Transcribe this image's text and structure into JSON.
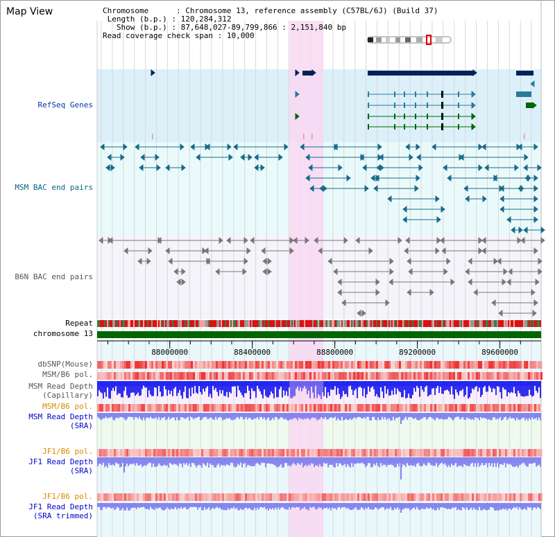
{
  "window": {
    "title": "Map View"
  },
  "info": {
    "chromosome_key": "Chromosome",
    "chromosome_value": "Chromosome 13, reference assembly (C57BL/6J) (Build 37)",
    "length_key": "Length (b.p.)",
    "length_value": "120,284,312",
    "show_key": "Show (b.p.)",
    "show_value": "87,648,027-89,799,866 : 2,151,840 bp",
    "coverage_key": "Read coverage check span",
    "coverage_value": "10,000"
  },
  "tracks": {
    "refseq": "RefSeq Genes",
    "msm_bac": "MSM BAC end pairs",
    "b6n_bac": "B6N BAC end pairs",
    "repeat": "Repeat",
    "chromosome": "chromosome 13",
    "dbsnp": "dbSNP(Mouse)",
    "msm_b6_pol_1": "MSM/B6 pol.",
    "msm_depth_cap_1": "MSM Read Depth",
    "msm_depth_cap_2": "(Capillary)",
    "msm_b6_pol_2": "MSM/B6 pol.",
    "msm_depth_sra_1": "MSM Read Depth",
    "msm_depth_sra_2": "(SRA)",
    "jf1_b6_pol_1": "JF1/B6 pol.",
    "jf1_depth_sra_1": "JF1 Read Depth",
    "jf1_depth_sra_2": "(SRA)",
    "jf1_b6_pol_2": "JF1/B6 pol.",
    "jf1_depth_trim_1": "JF1 Read Depth",
    "jf1_depth_trim_2": "(SRA trimmed)"
  },
  "axis": {
    "ticks": [
      "88000000",
      "88400000",
      "88800000",
      "89200000",
      "89600000"
    ],
    "tick_values": [
      88000000,
      88400000,
      88800000,
      89200000,
      89600000
    ],
    "range": [
      87648027,
      89799866
    ]
  },
  "colors": {
    "refseq_bg": "#dcf0fa",
    "bac_bg": "#eafafa",
    "b6n_bg": "#f4f4fa",
    "highlight": "#f9d8f2",
    "chromosome_bar": "#006600",
    "gene_dark": "#002255",
    "gene_teal": "#2a7a99",
    "gene_green": "#006600",
    "depth_blue": "#1a1aee",
    "depth_lavender": "#8080ee",
    "snp_red": "#ee3333"
  },
  "highlight_region": {
    "start": 88580000,
    "end": 88745000
  }
}
